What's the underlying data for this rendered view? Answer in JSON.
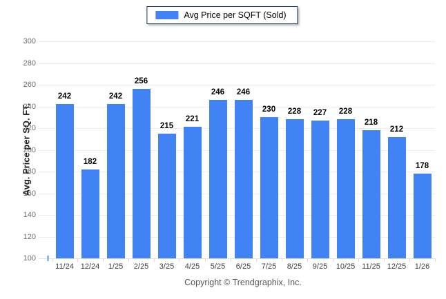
{
  "legend": {
    "label": "Avg Price per SQFT (Sold)"
  },
  "footer": {
    "copyright": "Copyright © Trendgraphix, Inc."
  },
  "colors": {
    "bar": "#4183f4",
    "legend_border": "#17365d"
  },
  "chart_data": {
    "type": "bar",
    "title": "",
    "series": [
      {
        "name": "Avg Price per SQFT (Sold)",
        "values": [
          242,
          182,
          242,
          256,
          215,
          221,
          246,
          246,
          230,
          228,
          227,
          228,
          218,
          212,
          178
        ]
      }
    ],
    "categories": [
      "11/24",
      "12/24",
      "1/25",
      "2/25",
      "3/25",
      "4/25",
      "5/25",
      "6/25",
      "7/25",
      "8/25",
      "9/25",
      "10/25",
      "11/25",
      "12/25",
      "1/26"
    ],
    "xlabel": "",
    "ylabel": "Avg. Price per SQ. FT.",
    "ylim": [
      100,
      300
    ],
    "ytick_step": 20,
    "grid": true,
    "legend_position": "top",
    "bar_color": "#4183f4",
    "value_labels_shown": true
  }
}
